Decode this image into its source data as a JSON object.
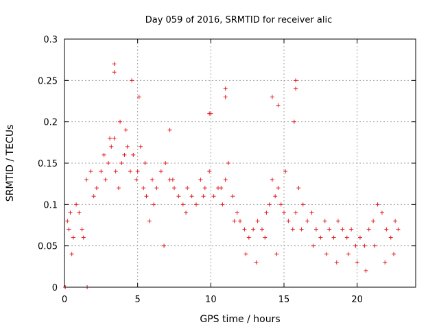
{
  "chart_data": {
    "type": "scatter",
    "title": "Day 059 of 2016, SRMTID for receiver alic",
    "xlabel": "GPS time / hours",
    "ylabel": "SRMTID / TECUs",
    "xlim": [
      0,
      24
    ],
    "ylim": [
      0,
      0.3
    ],
    "xticks": [
      0,
      5,
      10,
      15,
      20
    ],
    "xtick_labels": [
      "0",
      "5",
      "10",
      "15",
      "20"
    ],
    "yticks": [
      0,
      0.05,
      0.1,
      0.15,
      0.2,
      0.25,
      0.3
    ],
    "ytick_labels": [
      "0",
      "0.05",
      "0.1",
      "0.15",
      "0.2",
      "0.25",
      "0.3"
    ],
    "grid": true,
    "legend": "none",
    "marker": "+",
    "color": "#e41a1c",
    "series": [
      {
        "x": [
          0.05,
          0.2,
          0.4,
          0.6,
          0.8,
          1.0,
          1.2,
          1.5,
          1.8,
          2.0,
          2.2,
          2.5,
          2.8,
          3.0,
          3.2,
          3.4,
          3.5,
          3.7,
          3.9,
          4.1,
          4.3,
          4.5,
          4.7,
          4.9,
          5.0,
          5.2,
          5.4,
          5.6,
          5.8,
          6.0,
          6.3,
          6.6,
          6.9,
          7.2,
          7.5,
          7.8,
          8.1,
          8.4,
          8.7,
          9.0,
          9.3,
          9.6,
          9.9,
          10.2,
          10.5,
          10.8,
          11.0,
          11.2,
          11.5,
          11.8,
          12.0,
          12.3,
          12.6,
          12.9,
          13.2,
          13.5,
          13.8,
          14.0,
          14.2,
          14.4,
          14.6,
          14.8,
          15.0,
          15.3,
          15.6,
          15.8,
          16.0,
          16.3,
          16.6,
          16.9,
          17.2,
          17.5,
          17.8,
          18.1,
          18.4,
          18.7,
          19.0,
          19.3,
          19.6,
          19.9,
          20.2,
          20.5,
          20.8,
          21.1,
          21.4,
          21.7,
          22.0,
          22.3,
          22.6,
          22.8,
          0.05,
          1.55,
          3.4,
          3.4,
          4.6,
          5.1,
          11.0,
          11.0,
          14.2,
          14.6,
          15.8,
          15.8,
          15.7,
          9.9,
          10.0,
          7.2,
          0.3,
          0.5,
          1.3,
          2.7,
          3.1,
          3.8,
          4.2,
          5.5,
          6.1,
          6.8,
          7.4,
          8.3,
          9.5,
          10.7,
          11.6,
          12.4,
          13.1,
          13.7,
          14.5,
          15.1,
          16.2,
          17.0,
          17.9,
          18.6,
          19.4,
          20.0,
          20.6,
          21.2,
          21.9,
          22.5
        ],
        "y": [
          0.0,
          0.08,
          0.09,
          0.06,
          0.1,
          0.09,
          0.07,
          0.13,
          0.14,
          0.11,
          0.12,
          0.14,
          0.13,
          0.15,
          0.17,
          0.18,
          0.14,
          0.12,
          0.15,
          0.16,
          0.17,
          0.14,
          0.16,
          0.13,
          0.14,
          0.17,
          0.12,
          0.11,
          0.08,
          0.13,
          0.12,
          0.14,
          0.15,
          0.13,
          0.12,
          0.11,
          0.1,
          0.12,
          0.11,
          0.1,
          0.13,
          0.12,
          0.14,
          0.11,
          0.12,
          0.1,
          0.13,
          0.15,
          0.11,
          0.09,
          0.08,
          0.07,
          0.06,
          0.07,
          0.08,
          0.07,
          0.09,
          0.1,
          0.13,
          0.11,
          0.12,
          0.1,
          0.09,
          0.08,
          0.07,
          0.09,
          0.12,
          0.1,
          0.08,
          0.09,
          0.07,
          0.06,
          0.08,
          0.07,
          0.06,
          0.08,
          0.07,
          0.06,
          0.07,
          0.05,
          0.06,
          0.05,
          0.07,
          0.08,
          0.1,
          0.09,
          0.07,
          0.06,
          0.08,
          0.07,
          0.0,
          0.0,
          0.27,
          0.26,
          0.25,
          0.23,
          0.24,
          0.23,
          0.23,
          0.22,
          0.25,
          0.24,
          0.2,
          0.21,
          0.21,
          0.19,
          0.07,
          0.04,
          0.06,
          0.16,
          0.18,
          0.2,
          0.19,
          0.15,
          0.1,
          0.05,
          0.13,
          0.09,
          0.11,
          0.12,
          0.08,
          0.04,
          0.03,
          0.06,
          0.04,
          0.14,
          0.07,
          0.05,
          0.04,
          0.03,
          0.04,
          0.03,
          0.02,
          0.05,
          0.03,
          0.04
        ]
      }
    ]
  }
}
